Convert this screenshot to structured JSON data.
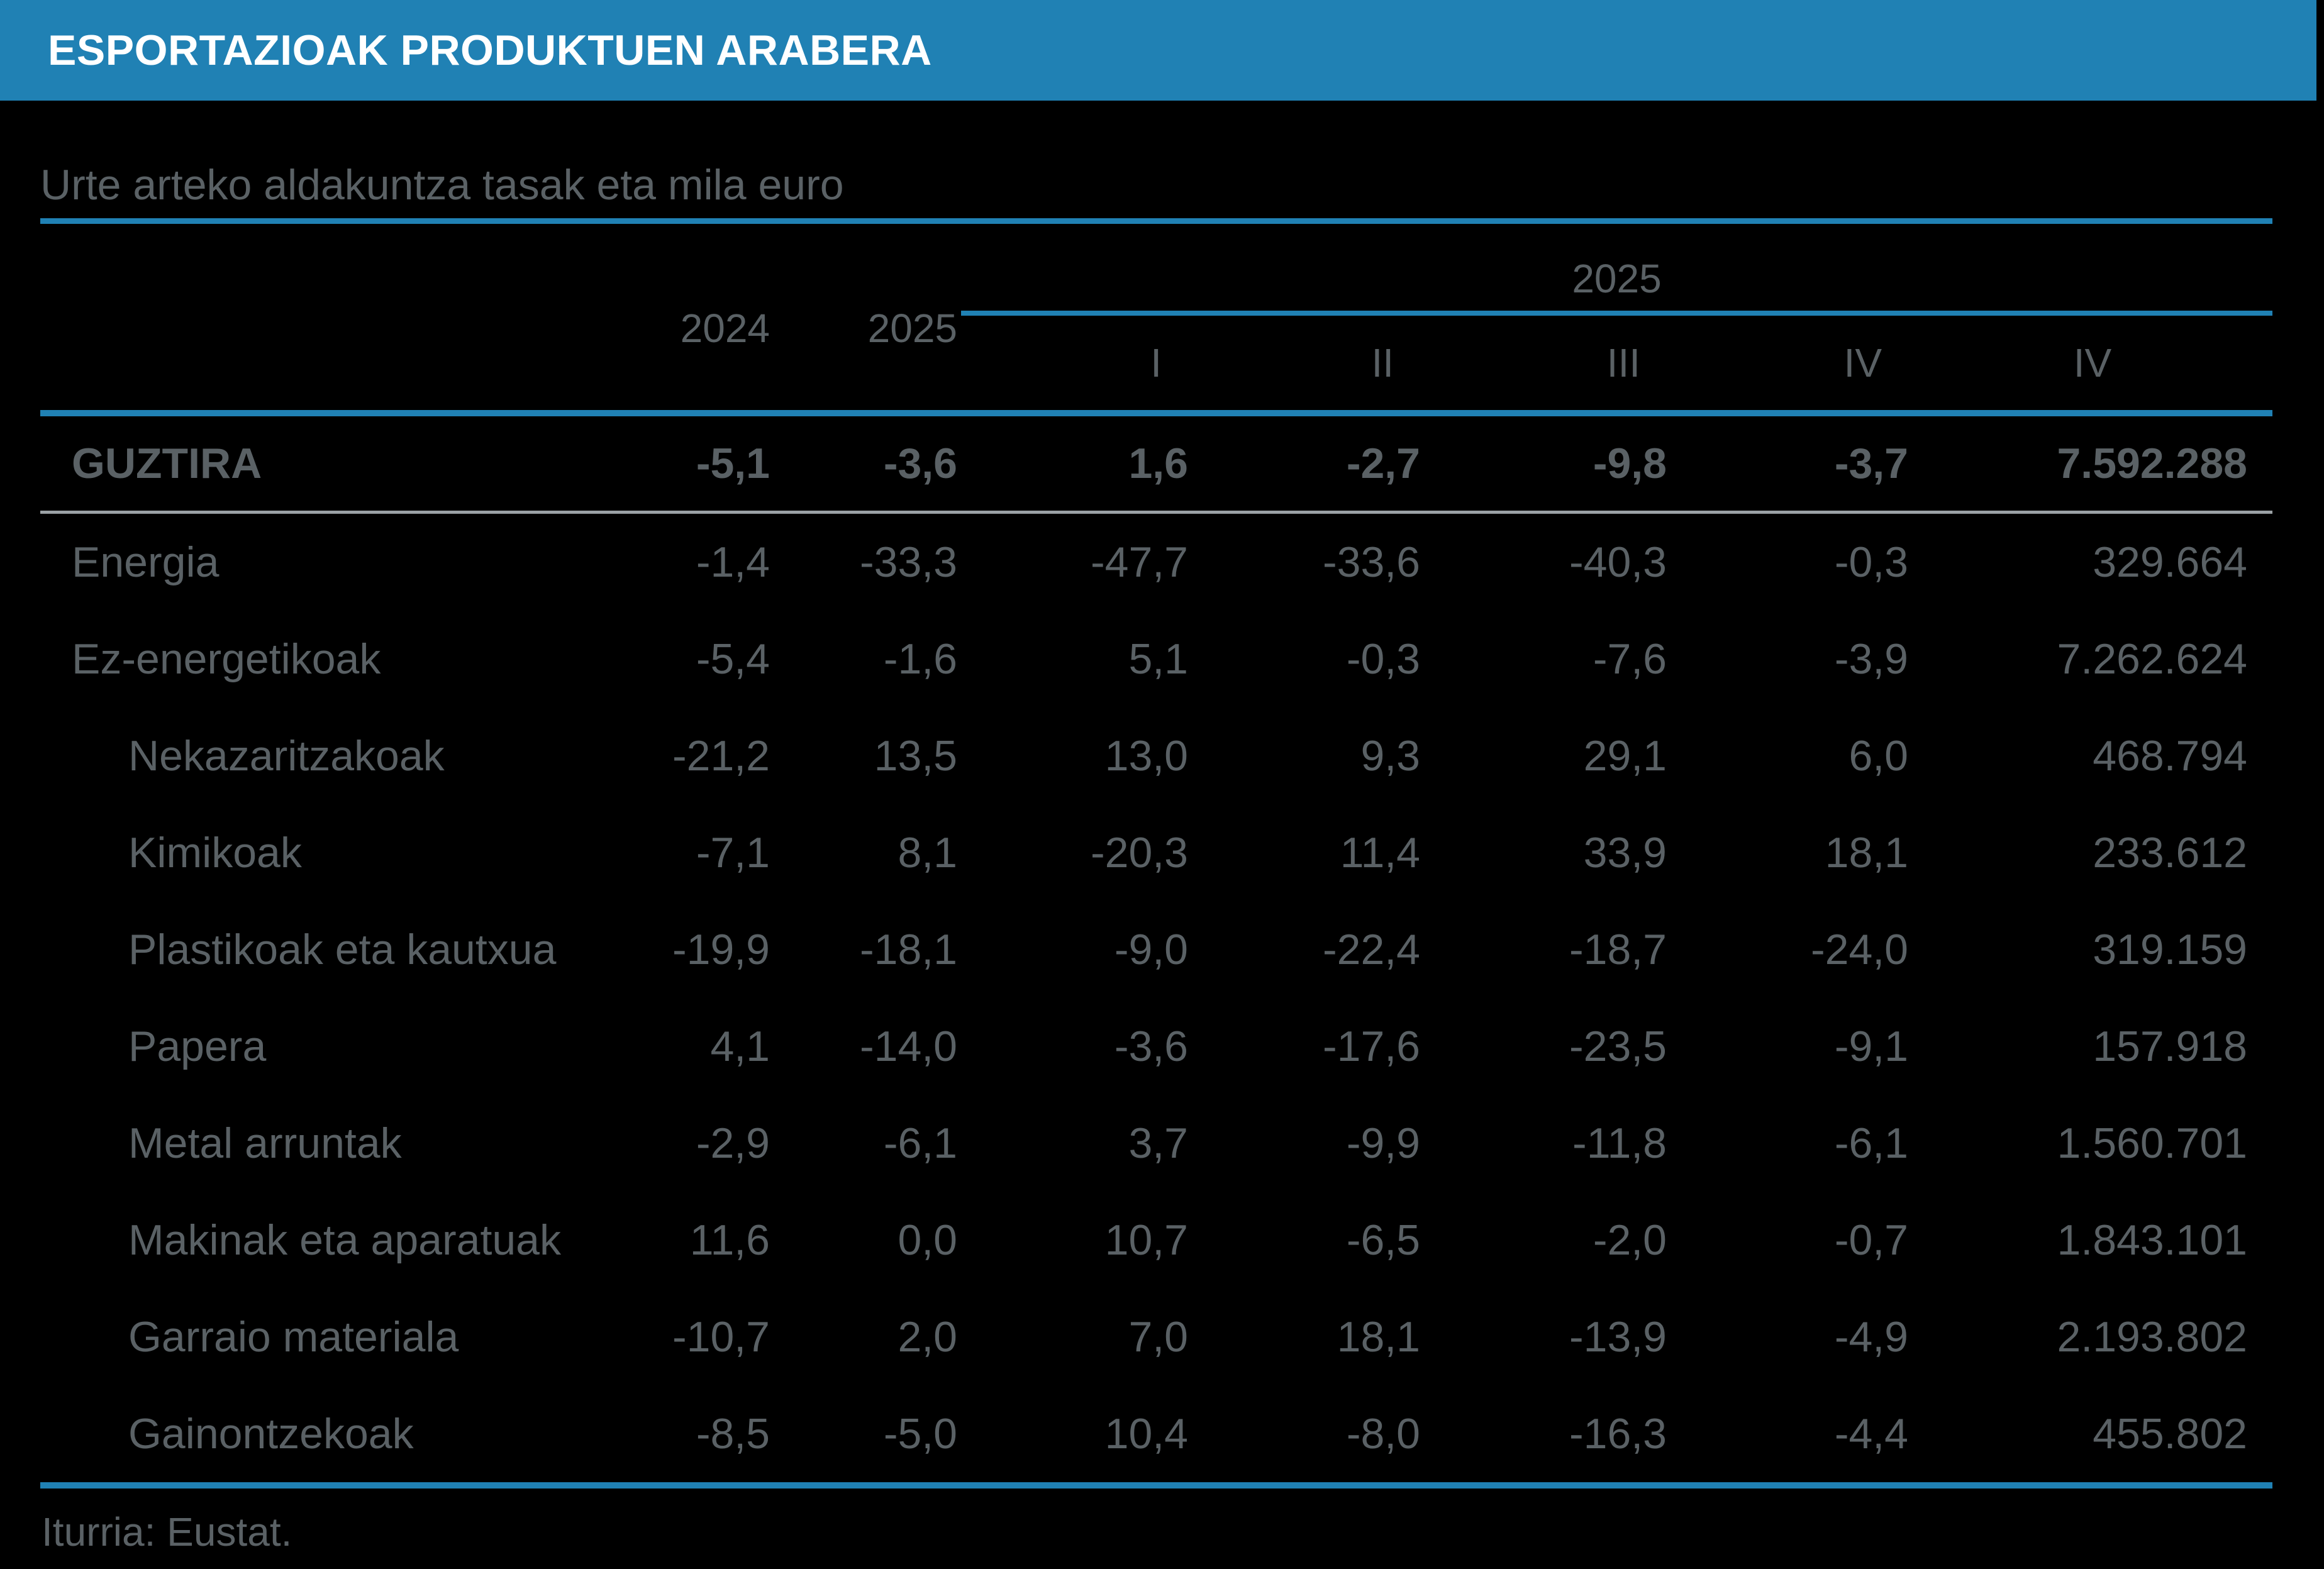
{
  "header": {
    "title": "ESPORTAZIOAK PRODUKTUEN ARABERA"
  },
  "subtitle": "Urte arteko aldakuntza tasak eta mila euro",
  "table": {
    "col_group_label": "2025",
    "year_cols": [
      "2024",
      "2025"
    ],
    "quarter_cols": [
      "I",
      "II",
      "III",
      "IV",
      "IV"
    ],
    "rows": [
      {
        "label": "GUZTIRA",
        "level": 0,
        "bold": true,
        "values": [
          "-5,1",
          "-3,6",
          "1,6",
          "-2,7",
          "-9,8",
          "-3,7",
          "7.592.288"
        ]
      },
      {
        "label": "Energia",
        "level": 0,
        "bold": false,
        "values": [
          "-1,4",
          "-33,3",
          "-47,7",
          "-33,6",
          "-40,3",
          "-0,3",
          "329.664"
        ]
      },
      {
        "label": "Ez-energetikoak",
        "level": 0,
        "bold": false,
        "values": [
          "-5,4",
          "-1,6",
          "5,1",
          "-0,3",
          "-7,6",
          "-3,9",
          "7.262.624"
        ]
      },
      {
        "label": "Nekazaritzakoak",
        "level": 1,
        "bold": false,
        "values": [
          "-21,2",
          "13,5",
          "13,0",
          "9,3",
          "29,1",
          "6,0",
          "468.794"
        ]
      },
      {
        "label": "Kimikoak",
        "level": 1,
        "bold": false,
        "values": [
          "-7,1",
          "8,1",
          "-20,3",
          "11,4",
          "33,9",
          "18,1",
          "233.612"
        ]
      },
      {
        "label": "Plastikoak eta kautxua",
        "level": 1,
        "bold": false,
        "values": [
          "-19,9",
          "-18,1",
          "-9,0",
          "-22,4",
          "-18,7",
          "-24,0",
          "319.159"
        ]
      },
      {
        "label": "Papera",
        "level": 1,
        "bold": false,
        "values": [
          "4,1",
          "-14,0",
          "-3,6",
          "-17,6",
          "-23,5",
          "-9,1",
          "157.918"
        ]
      },
      {
        "label": "Metal arruntak",
        "level": 1,
        "bold": false,
        "values": [
          "-2,9",
          "-6,1",
          "3,7",
          "-9,9",
          "-11,8",
          "-6,1",
          "1.560.701"
        ]
      },
      {
        "label": "Makinak eta aparatuak",
        "level": 1,
        "bold": false,
        "values": [
          "11,6",
          "0,0",
          "10,7",
          "-6,5",
          "-2,0",
          "-0,7",
          "1.843.101"
        ]
      },
      {
        "label": "Garraio materiala",
        "level": 1,
        "bold": false,
        "values": [
          "-10,7",
          "2,0",
          "7,0",
          "18,1",
          "-13,9",
          "-4,9",
          "2.193.802"
        ]
      },
      {
        "label": "Gainontzekoak",
        "level": 1,
        "bold": false,
        "values": [
          "-8,5",
          "-5,0",
          "10,4",
          "-8,0",
          "-16,3",
          "-4,4",
          "455.802"
        ]
      }
    ]
  },
  "footer": {
    "source": "Iturria: Eustat."
  },
  "colors": {
    "accent_blue": "#2081B4",
    "text_gray": "#5A6165",
    "rule_gray": "#9BA1A5",
    "title_text": "#FFFFFF",
    "background": "#000000"
  },
  "chart_data": {
    "type": "table",
    "title": "ESPORTAZIOAK PRODUKTUEN ARABERA",
    "subtitle": "Urte arteko aldakuntza tasak eta mila euro",
    "columns": [
      "2024",
      "2025",
      "2025-I",
      "2025-II",
      "2025-III",
      "2025-IV",
      "2025-IV (mila euro)"
    ],
    "rows": [
      {
        "label": "GUZTIRA",
        "values": [
          -5.1,
          -3.6,
          1.6,
          -2.7,
          -9.8,
          -3.7,
          7592288
        ]
      },
      {
        "label": "Energia",
        "values": [
          -1.4,
          -33.3,
          -47.7,
          -33.6,
          -40.3,
          -0.3,
          329664
        ]
      },
      {
        "label": "Ez-energetikoak",
        "values": [
          -5.4,
          -1.6,
          5.1,
          -0.3,
          -7.6,
          -3.9,
          7262624
        ]
      },
      {
        "label": "Nekazaritzakoak",
        "values": [
          -21.2,
          13.5,
          13.0,
          9.3,
          29.1,
          6.0,
          468794
        ]
      },
      {
        "label": "Kimikoak",
        "values": [
          -7.1,
          8.1,
          -20.3,
          11.4,
          33.9,
          18.1,
          233612
        ]
      },
      {
        "label": "Plastikoak eta kautxua",
        "values": [
          -19.9,
          -18.1,
          -9.0,
          -22.4,
          -18.7,
          -24.0,
          319159
        ]
      },
      {
        "label": "Papera",
        "values": [
          4.1,
          -14.0,
          -3.6,
          -17.6,
          -23.5,
          -9.1,
          157918
        ]
      },
      {
        "label": "Metal arruntak",
        "values": [
          -2.9,
          -6.1,
          3.7,
          -9.9,
          -11.8,
          -6.1,
          1560701
        ]
      },
      {
        "label": "Makinak eta aparatuak",
        "values": [
          11.6,
          0.0,
          10.7,
          -6.5,
          -2.0,
          -0.7,
          1843101
        ]
      },
      {
        "label": "Garraio materiala",
        "values": [
          -10.7,
          2.0,
          7.0,
          18.1,
          -13.9,
          -4.9,
          2193802
        ]
      },
      {
        "label": "Gainontzekoak",
        "values": [
          -8.5,
          -5.0,
          10.4,
          -8.0,
          -16.3,
          -4.4,
          455802
        ]
      }
    ],
    "source": "Iturria: Eustat."
  }
}
